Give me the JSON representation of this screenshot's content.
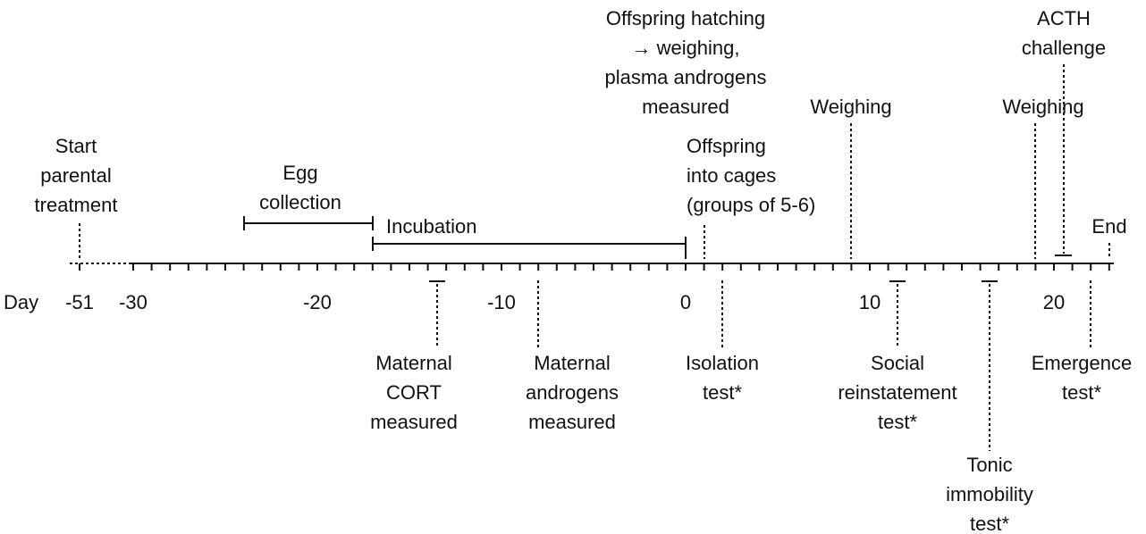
{
  "axis": {
    "label": "Day",
    "tick_labels": [
      "-51",
      "-30",
      "-20",
      "-10",
      "0",
      "10",
      "20"
    ]
  },
  "events": [
    {
      "lines": [
        "Start",
        "parental",
        "treatment"
      ]
    },
    {
      "lines": [
        "Egg",
        "collection"
      ]
    },
    {
      "lines": [
        "Incubation"
      ]
    },
    {
      "lines": [
        "Offspring hatching",
        "→ weighing,",
        "plasma androgens",
        "measured"
      ]
    },
    {
      "lines": [
        "Offspring",
        "into cages",
        "(groups of 5-6)"
      ]
    },
    {
      "lines": [
        "Weighing"
      ]
    },
    {
      "lines": [
        "Weighing"
      ]
    },
    {
      "lines": [
        "ACTH",
        "challenge"
      ]
    },
    {
      "lines": [
        "End"
      ]
    },
    {
      "lines": [
        "Maternal",
        "CORT",
        "measured"
      ]
    },
    {
      "lines": [
        "Maternal",
        "androgens",
        "measured"
      ]
    },
    {
      "lines": [
        "Isolation",
        "test*"
      ]
    },
    {
      "lines": [
        "Social",
        "reinstatement",
        "test*"
      ]
    },
    {
      "lines": [
        "Tonic",
        "immobility",
        "test*"
      ]
    },
    {
      "lines": [
        "Emergence",
        "test*"
      ]
    }
  ]
}
